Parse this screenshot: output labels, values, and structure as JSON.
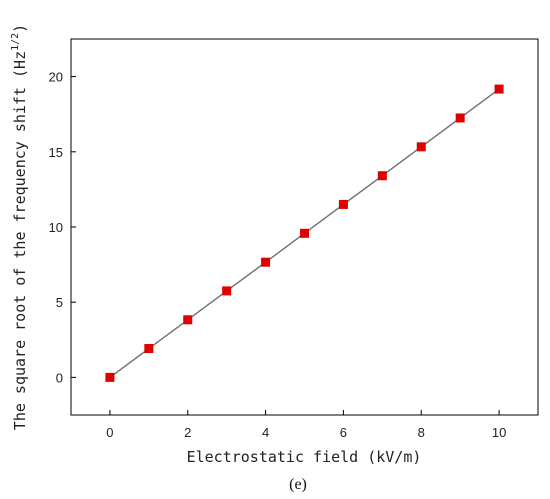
{
  "chart_data": {
    "type": "scatter",
    "title": "",
    "xlabel": "Electrostatic field (kV/m)",
    "ylabel": "The square root of the frequency shift (Hz",
    "ylabel_unit_sup": "1/2",
    "ylabel_close": ")",
    "panel_label": "(e)",
    "xlim": [
      -1,
      11
    ],
    "ylim": [
      -2.5,
      22.5
    ],
    "xticks": [
      0,
      2,
      4,
      6,
      8,
      10
    ],
    "yticks": [
      0,
      5,
      10,
      15,
      20
    ],
    "grid": false,
    "series": [
      {
        "marker_color": "#e00000",
        "line_color": "#707070",
        "x": [
          0,
          1,
          2,
          3,
          4,
          5,
          6,
          7,
          8,
          9,
          10
        ],
        "y": [
          0.0,
          1.92,
          3.83,
          5.75,
          7.66,
          9.58,
          11.5,
          13.41,
          15.33,
          17.25,
          19.17
        ]
      }
    ]
  }
}
